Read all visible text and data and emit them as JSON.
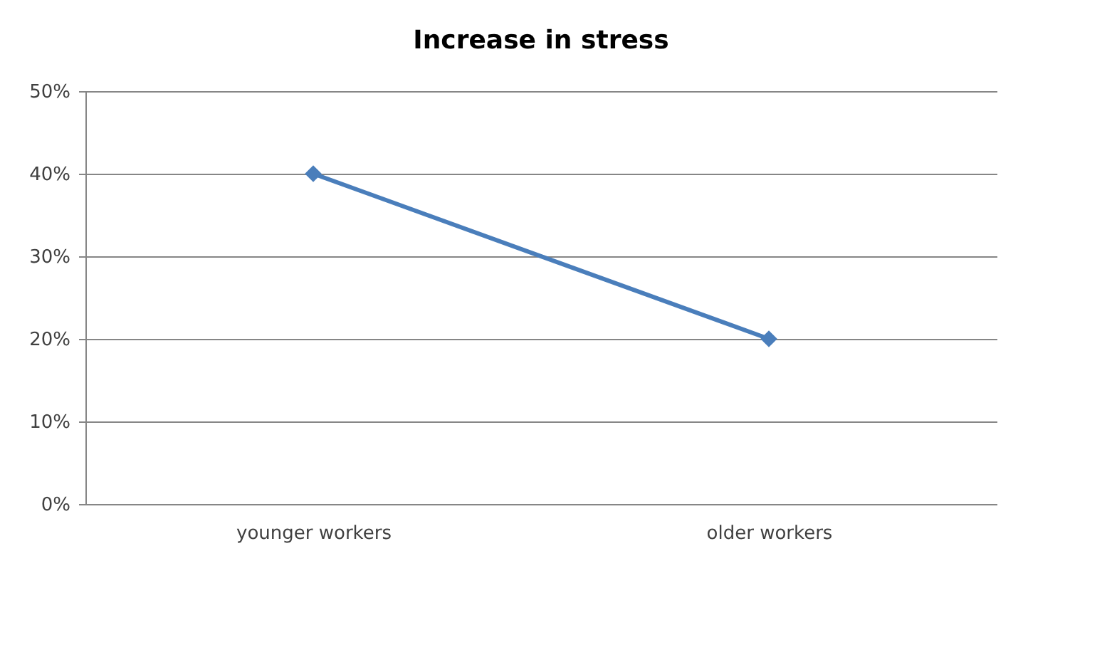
{
  "chart_data": {
    "type": "line",
    "title": "Increase in stress",
    "categories": [
      "younger workers",
      "older workers"
    ],
    "series": [
      {
        "color": "#4a7ebb",
        "values": [
          40,
          20
        ]
      }
    ],
    "ylim": [
      0,
      50
    ],
    "yticks": [
      {
        "value": 0,
        "label": "0%"
      },
      {
        "value": 10,
        "label": "10%"
      },
      {
        "value": 20,
        "label": "20%"
      },
      {
        "value": 30,
        "label": "30%"
      },
      {
        "value": 40,
        "label": "40%"
      },
      {
        "value": 50,
        "label": "50%"
      }
    ],
    "grid": "y",
    "marker": "diamond"
  }
}
